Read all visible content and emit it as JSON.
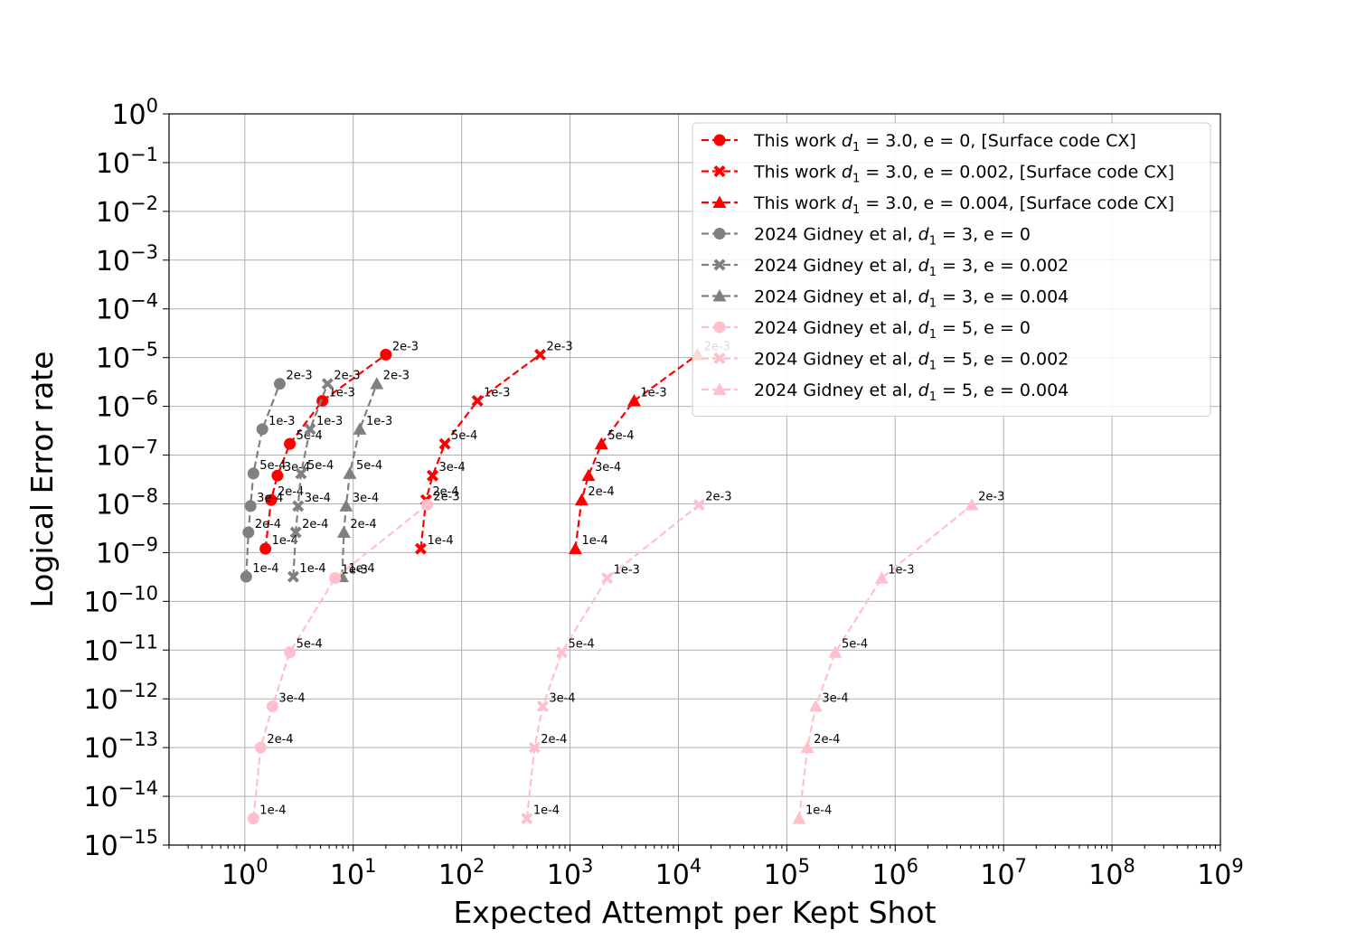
{
  "chart_data": {
    "type": "line",
    "xlabel": "Expected Attempt per Kept Shot",
    "ylabel": "Logical Error rate",
    "xscale": "log",
    "yscale": "log",
    "xlim": [
      0.2,
      1000000000.0
    ],
    "ylim": [
      1e-15,
      1
    ],
    "x_tick_labels": [
      "10^0",
      "10^1",
      "10^2",
      "10^3",
      "10^4",
      "10^5",
      "10^6",
      "10^7",
      "10^8",
      "10^9"
    ],
    "y_tick_labels": [
      "10^0",
      "10^-1",
      "10^-2",
      "10^-3",
      "10^-4",
      "10^-5",
      "10^-6",
      "10^-7",
      "10^-8",
      "10^-9",
      "10^-10",
      "10^-11",
      "10^-12",
      "10^-13",
      "10^-14",
      "10^-15"
    ],
    "grid": true,
    "legend_position": "top-right",
    "series": [
      {
        "name": "This work $d_1 = 3.0, e = 0$, [Surface code CX]",
        "legend_base": "This work ",
        "legend_math": "d",
        "legend_sub": "1",
        "legend_rest": " = 3.0, e = 0, [Surface code CX]",
        "color": "#ff0000",
        "marker": "circle",
        "points": [
          {
            "x": 1.55,
            "y": 1.2e-09,
            "label": "1e-4"
          },
          {
            "x": 1.75,
            "y": 1.2e-08,
            "label": "2e-4"
          },
          {
            "x": 2.0,
            "y": 3.8e-08,
            "label": "3e-4"
          },
          {
            "x": 2.6,
            "y": 1.7e-07,
            "label": "5e-4"
          },
          {
            "x": 5.2,
            "y": 1.3e-06,
            "label": "1e-3"
          },
          {
            "x": 20,
            "y": 1.15e-05,
            "label": "2e-3"
          }
        ]
      },
      {
        "name": "This work $d_1 = 3.0, e = 0.002$, [Surface code CX]",
        "legend_base": "This work ",
        "legend_math": "d",
        "legend_sub": "1",
        "legend_rest": " = 3.0, e = 0.002, [Surface code CX]",
        "color": "#ff0000",
        "marker": "x",
        "points": [
          {
            "x": 42,
            "y": 1.2e-09,
            "label": "1e-4"
          },
          {
            "x": 47,
            "y": 1.2e-08,
            "label": "2e-4"
          },
          {
            "x": 54,
            "y": 3.8e-08,
            "label": "3e-4"
          },
          {
            "x": 70,
            "y": 1.7e-07,
            "label": "5e-4"
          },
          {
            "x": 140,
            "y": 1.3e-06,
            "label": "1e-3"
          },
          {
            "x": 530,
            "y": 1.15e-05,
            "label": "2e-3"
          }
        ]
      },
      {
        "name": "This work $d_1 = 3.0, e = 0.004$, [Surface code CX]",
        "legend_base": "This work ",
        "legend_math": "d",
        "legend_sub": "1",
        "legend_rest": " = 3.0, e = 0.004, [Surface code CX]",
        "color": "#ff0000",
        "marker": "triangle",
        "points": [
          {
            "x": 1120,
            "y": 1.2e-09,
            "label": "1e-4"
          },
          {
            "x": 1280,
            "y": 1.2e-08,
            "label": "2e-4"
          },
          {
            "x": 1480,
            "y": 3.8e-08,
            "label": "3e-4"
          },
          {
            "x": 1950,
            "y": 1.7e-07,
            "label": "5e-4"
          },
          {
            "x": 3900,
            "y": 1.3e-06,
            "label": "1e-3"
          },
          {
            "x": 15000,
            "y": 1.15e-05,
            "label": "2e-3"
          }
        ]
      },
      {
        "name": "2024 Gidney et al, $d_1 = 3, e = 0$",
        "legend_base": "2024 Gidney et al, ",
        "legend_math": "d",
        "legend_sub": "1",
        "legend_rest": " = 3, e = 0",
        "color": "#808080",
        "marker": "circle",
        "points": [
          {
            "x": 1.03,
            "y": 3.2e-10,
            "label": "1e-4"
          },
          {
            "x": 1.08,
            "y": 2.6e-09,
            "label": "2e-4"
          },
          {
            "x": 1.13,
            "y": 9e-09,
            "label": "3e-4"
          },
          {
            "x": 1.2,
            "y": 4.2e-08,
            "label": "5e-4"
          },
          {
            "x": 1.45,
            "y": 3.4e-07,
            "label": "1e-3"
          },
          {
            "x": 2.1,
            "y": 2.9e-06,
            "label": "2e-3"
          }
        ]
      },
      {
        "name": "2024 Gidney et al, $d_1 = 3, e = 0.002$",
        "legend_base": "2024 Gidney et al, ",
        "legend_math": "d",
        "legend_sub": "1",
        "legend_rest": " = 3, e = 0.002",
        "color": "#808080",
        "marker": "x",
        "points": [
          {
            "x": 2.8,
            "y": 3.2e-10,
            "label": "1e-4"
          },
          {
            "x": 2.95,
            "y": 2.6e-09,
            "label": "2e-4"
          },
          {
            "x": 3.1,
            "y": 9e-09,
            "label": "3e-4"
          },
          {
            "x": 3.3,
            "y": 4.2e-08,
            "label": "5e-4"
          },
          {
            "x": 4.0,
            "y": 3.4e-07,
            "label": "1e-3"
          },
          {
            "x": 5.8,
            "y": 2.9e-06,
            "label": "2e-3"
          }
        ]
      },
      {
        "name": "2024 Gidney et al, $d_1 = 3, e = 0.004$",
        "legend_base": "2024 Gidney et al, ",
        "legend_math": "d",
        "legend_sub": "1",
        "legend_rest": " = 3, e = 0.004",
        "color": "#808080",
        "marker": "triangle",
        "points": [
          {
            "x": 7.9,
            "y": 3.2e-10,
            "label": "1e-4"
          },
          {
            "x": 8.2,
            "y": 2.6e-09,
            "label": "2e-4"
          },
          {
            "x": 8.6,
            "y": 9e-09,
            "label": "3e-4"
          },
          {
            "x": 9.3,
            "y": 4.2e-08,
            "label": "5e-4"
          },
          {
            "x": 11.5,
            "y": 3.4e-07,
            "label": "1e-3"
          },
          {
            "x": 16.5,
            "y": 2.9e-06,
            "label": "2e-3"
          }
        ]
      },
      {
        "name": "2024 Gidney et al, $d_1 = 5, e = 0$",
        "legend_base": "2024 Gidney et al, ",
        "legend_math": "d",
        "legend_sub": "1",
        "legend_rest": " = 5, e = 0",
        "color": "#ffc0cb",
        "marker": "circle",
        "points": [
          {
            "x": 1.2,
            "y": 3.5e-15,
            "label": "1e-4"
          },
          {
            "x": 1.4,
            "y": 1e-13,
            "label": "2e-4"
          },
          {
            "x": 1.8,
            "y": 7e-13,
            "label": "3e-4"
          },
          {
            "x": 2.6,
            "y": 9e-12,
            "label": "5e-4"
          },
          {
            "x": 6.8,
            "y": 3e-10,
            "label": "1e-3"
          },
          {
            "x": 48,
            "y": 9.5e-09,
            "label": "2e-3"
          }
        ]
      },
      {
        "name": "2024 Gidney et al, $d_1 = 5, e = 0.002$",
        "legend_base": "2024 Gidney et al, ",
        "legend_math": "d",
        "legend_sub": "1",
        "legend_rest": " = 5, e = 0.002",
        "color": "#ffc0cb",
        "marker": "x",
        "points": [
          {
            "x": 400,
            "y": 3.5e-15,
            "label": "1e-4"
          },
          {
            "x": 470,
            "y": 1e-13,
            "label": "2e-4"
          },
          {
            "x": 560,
            "y": 7e-13,
            "label": "3e-4"
          },
          {
            "x": 840,
            "y": 9e-12,
            "label": "5e-4"
          },
          {
            "x": 2200,
            "y": 3e-10,
            "label": "1e-3"
          },
          {
            "x": 15500,
            "y": 9.5e-09,
            "label": "2e-3"
          }
        ]
      },
      {
        "name": "2024 Gidney et al, $d_1 = 5, e = 0.004$",
        "legend_base": "2024 Gidney et al, ",
        "legend_math": "d",
        "legend_sub": "1",
        "legend_rest": " = 5, e = 0.004",
        "color": "#ffc0cb",
        "marker": "triangle",
        "points": [
          {
            "x": 130000,
            "y": 3.5e-15,
            "label": "1e-4"
          },
          {
            "x": 155000,
            "y": 1e-13,
            "label": "2e-4"
          },
          {
            "x": 185000,
            "y": 7e-13,
            "label": "3e-4"
          },
          {
            "x": 280000,
            "y": 9e-12,
            "label": "5e-4"
          },
          {
            "x": 750000,
            "y": 3e-10,
            "label": "1e-3"
          },
          {
            "x": 5100000,
            "y": 9.5e-09,
            "label": "2e-3"
          }
        ]
      }
    ]
  }
}
